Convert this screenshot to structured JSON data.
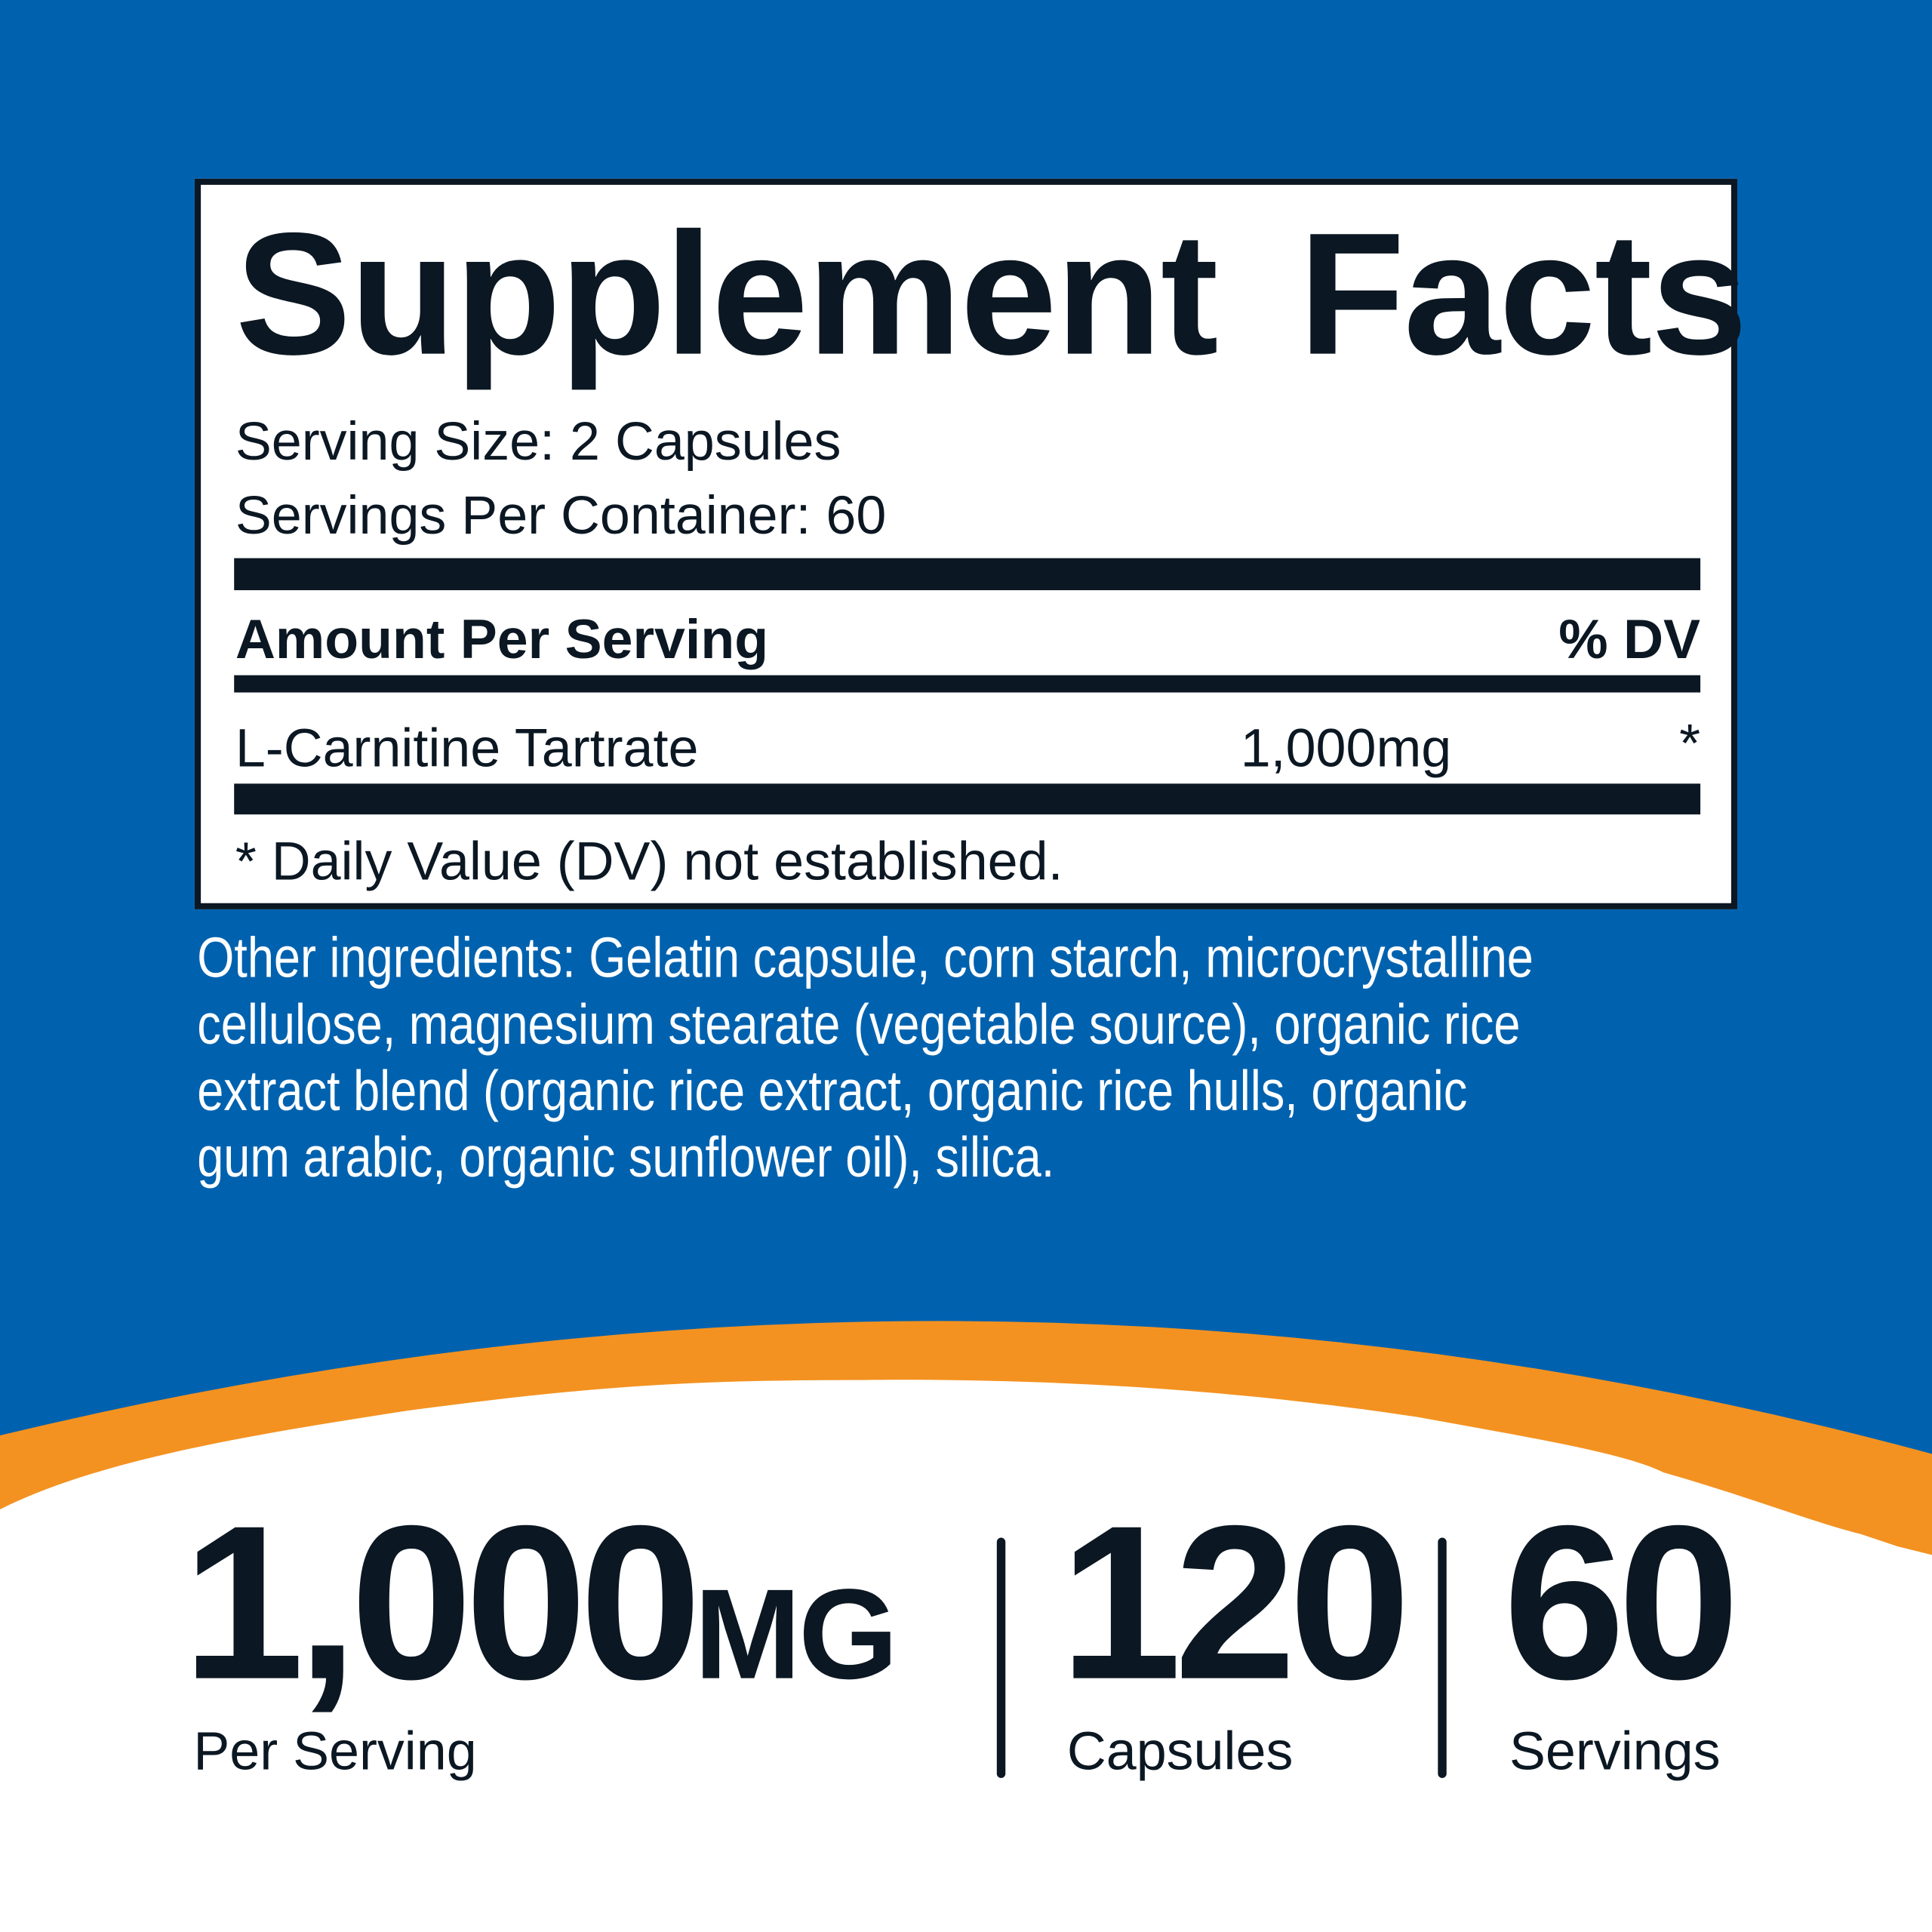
{
  "colors": {
    "background_blue": "#0062af",
    "accent_orange": "#f39221",
    "text_dark": "#0b1722",
    "panel_white": "#ffffff"
  },
  "facts": {
    "title": "Supplement Facts",
    "serving_size": "Serving Size: 2 Capsules",
    "servings_per_container": "Servings Per Container: 60",
    "amount_header": "Amount Per Serving",
    "dv_header": "% DV",
    "rows": [
      {
        "name": "L-Carnitine Tartrate",
        "amount": "1,000mg",
        "dv": "*"
      }
    ],
    "footnote": "* Daily Value (DV) not established."
  },
  "other_ingredients": {
    "lines": [
      "Other ingredients: Gelatin capsule, corn starch, microcrystalline",
      "cellulose, magnesium stearate (vegetable source), organic rice",
      "extract blend (organic rice extract, organic rice hulls, organic",
      "gum arabic, organic sunflower oil), silica."
    ]
  },
  "highlights": [
    {
      "value": "1,000",
      "unit": "MG",
      "label": "Per Serving"
    },
    {
      "value": "120",
      "label": "Capsules"
    },
    {
      "value": "60",
      "label": "Servings"
    }
  ]
}
